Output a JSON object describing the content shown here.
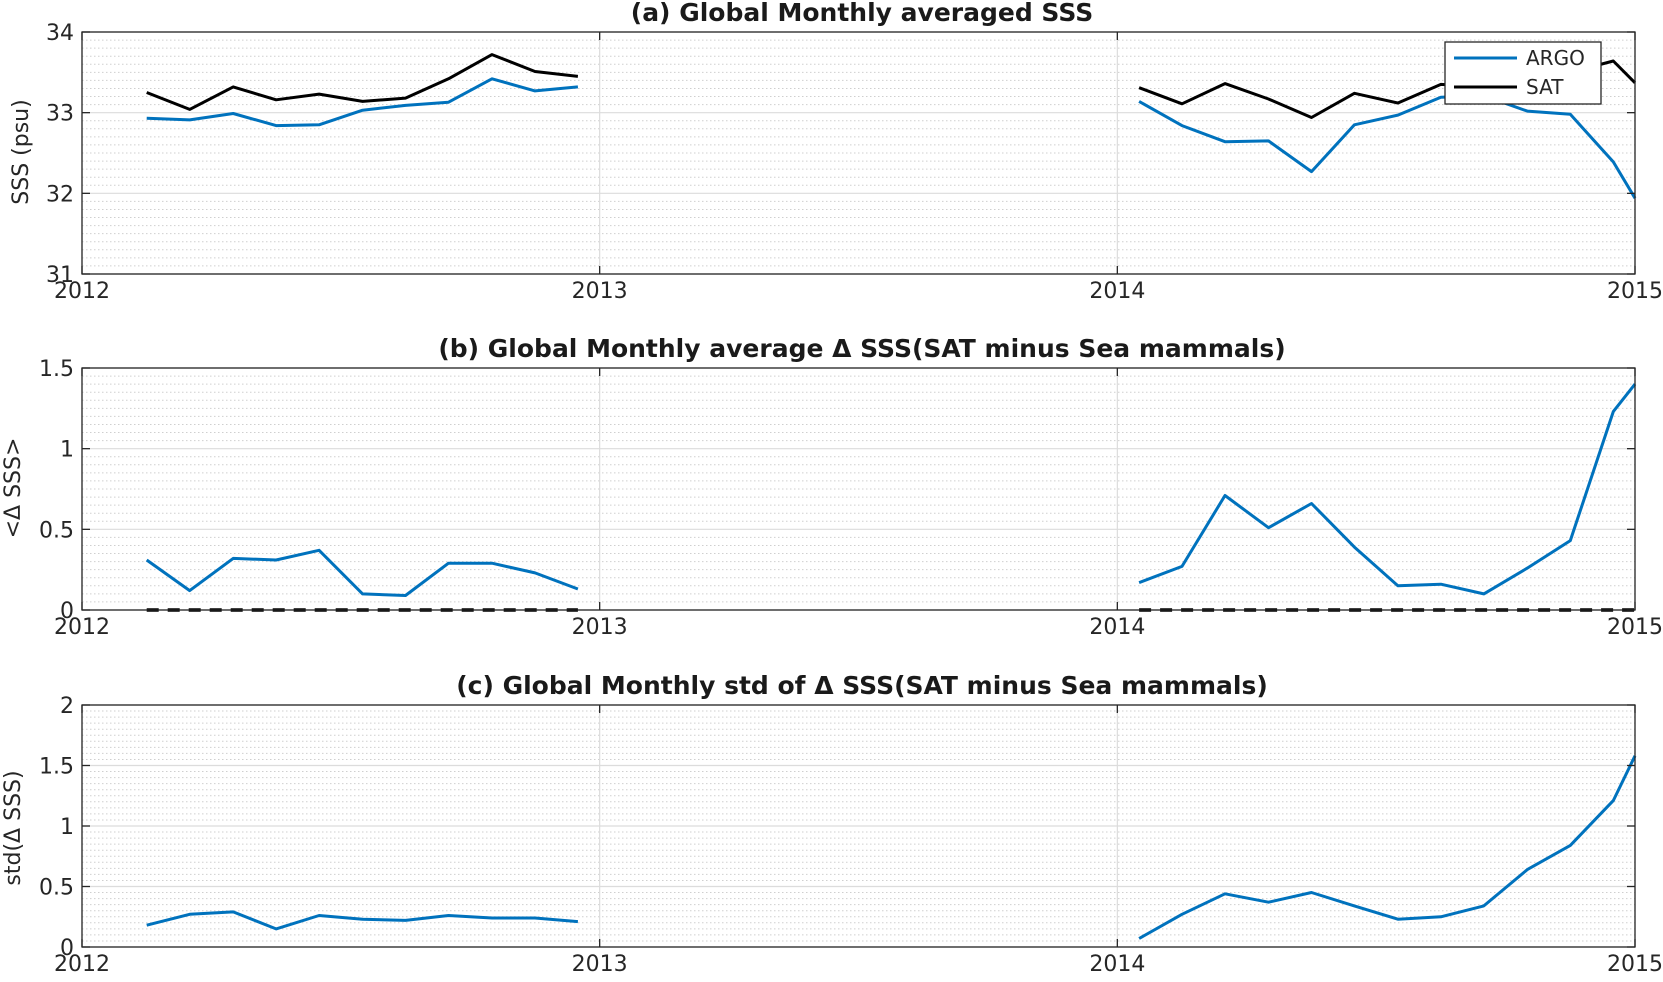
{
  "chart_data": [
    {
      "type": "line",
      "title": "(a) Global Monthly averaged SSS",
      "xlabel": "",
      "ylabel": "SSS (psu)",
      "xlim": [
        2012,
        2015
      ],
      "ylim": [
        31,
        34
      ],
      "xticks": [
        "2012",
        "2013",
        "2014",
        "2015"
      ],
      "yticks": [
        "31",
        "32",
        "33",
        "34"
      ],
      "grid": true,
      "minor_grid": true,
      "legend": {
        "position": "top-right",
        "entries": [
          "ARGO",
          "SAT"
        ]
      },
      "series": [
        {
          "name": "ARGO",
          "color": "#0072BD",
          "segments": [
            {
              "x": [
                2012.125,
                2012.208,
                2012.292,
                2012.375,
                2012.458,
                2012.542,
                2012.625,
                2012.708,
                2012.792,
                2012.875,
                2012.958
              ],
              "y": [
                32.93,
                32.91,
                32.99,
                32.84,
                32.85,
                33.03,
                33.09,
                33.13,
                33.42,
                33.27,
                33.32
              ]
            },
            {
              "x": [
                2014.042,
                2014.125,
                2014.208,
                2014.292,
                2014.375,
                2014.458,
                2014.542,
                2014.625,
                2014.708,
                2014.792,
                2014.875,
                2014.958,
                2015.0
              ],
              "y": [
                33.14,
                32.84,
                32.64,
                32.65,
                32.27,
                32.85,
                32.97,
                33.19,
                33.21,
                33.02,
                32.98,
                32.39,
                31.94
              ]
            }
          ]
        },
        {
          "name": "SAT",
          "color": "#000000",
          "segments": [
            {
              "x": [
                2012.125,
                2012.208,
                2012.292,
                2012.375,
                2012.458,
                2012.542,
                2012.625,
                2012.708,
                2012.792,
                2012.875,
                2012.958
              ],
              "y": [
                33.25,
                33.04,
                33.32,
                33.16,
                33.23,
                33.14,
                33.18,
                33.42,
                33.72,
                33.51,
                33.45
              ]
            },
            {
              "x": [
                2014.042,
                2014.125,
                2014.208,
                2014.292,
                2014.375,
                2014.458,
                2014.542,
                2014.625,
                2014.708,
                2014.792,
                2014.875,
                2014.958,
                2015.0
              ],
              "y": [
                33.31,
                33.11,
                33.36,
                33.17,
                32.94,
                33.24,
                33.12,
                33.35,
                33.32,
                33.48,
                33.5,
                33.64,
                33.37
              ]
            }
          ]
        }
      ]
    },
    {
      "type": "line",
      "title": "(b) Global Monthly average Δ SSS(SAT minus Sea mammals)",
      "xlabel": "",
      "ylabel": "<Δ SSS>",
      "xlim": [
        2012,
        2015
      ],
      "ylim": [
        0,
        1.5
      ],
      "xticks": [
        "2012",
        "2013",
        "2014",
        "2015"
      ],
      "yticks": [
        "0",
        "0.5",
        "1",
        "1.5"
      ],
      "grid": true,
      "minor_grid": true,
      "series": [
        {
          "color": "#0072BD",
          "segments": [
            {
              "x": [
                2012.125,
                2012.208,
                2012.292,
                2012.375,
                2012.458,
                2012.542,
                2012.625,
                2012.708,
                2012.792,
                2012.875,
                2012.958
              ],
              "y": [
                0.31,
                0.12,
                0.32,
                0.31,
                0.37,
                0.1,
                0.09,
                0.29,
                0.29,
                0.23,
                0.13
              ]
            },
            {
              "x": [
                2014.042,
                2014.125,
                2014.208,
                2014.292,
                2014.375,
                2014.458,
                2014.542,
                2014.625,
                2014.708,
                2014.792,
                2014.875,
                2014.958,
                2015.0
              ],
              "y": [
                0.17,
                0.27,
                0.71,
                0.51,
                0.66,
                0.39,
                0.15,
                0.16,
                0.1,
                0.26,
                0.43,
                1.23,
                1.4
              ]
            }
          ]
        },
        {
          "color": "#000000",
          "dashed": true,
          "segments": [
            {
              "x": [
                2012.125,
                2012.958
              ],
              "y": [
                0,
                0
              ]
            },
            {
              "x": [
                2014.042,
                2015.0
              ],
              "y": [
                0,
                0
              ]
            }
          ]
        }
      ]
    },
    {
      "type": "line",
      "title": "(c) Global Monthly std of Δ SSS(SAT minus Sea mammals)",
      "xlabel": "",
      "ylabel": "std(Δ SSS)",
      "xlim": [
        2012,
        2015
      ],
      "ylim": [
        0,
        2
      ],
      "xticks": [
        "2012",
        "2013",
        "2014",
        "2015"
      ],
      "yticks": [
        "0",
        "0.5",
        "1",
        "1.5",
        "2"
      ],
      "grid": true,
      "minor_grid": true,
      "series": [
        {
          "color": "#0072BD",
          "segments": [
            {
              "x": [
                2012.125,
                2012.208,
                2012.292,
                2012.375,
                2012.458,
                2012.542,
                2012.625,
                2012.708,
                2012.792,
                2012.875,
                2012.958
              ],
              "y": [
                0.18,
                0.27,
                0.29,
                0.15,
                0.26,
                0.23,
                0.22,
                0.26,
                0.24,
                0.24,
                0.21
              ]
            },
            {
              "x": [
                2014.042,
                2014.125,
                2014.208,
                2014.292,
                2014.375,
                2014.458,
                2014.542,
                2014.625,
                2014.708,
                2014.792,
                2014.875,
                2014.958,
                2015.0
              ],
              "y": [
                0.07,
                0.27,
                0.44,
                0.37,
                0.45,
                0.34,
                0.23,
                0.25,
                0.34,
                0.64,
                0.84,
                1.21,
                1.58
              ]
            }
          ]
        }
      ]
    }
  ]
}
